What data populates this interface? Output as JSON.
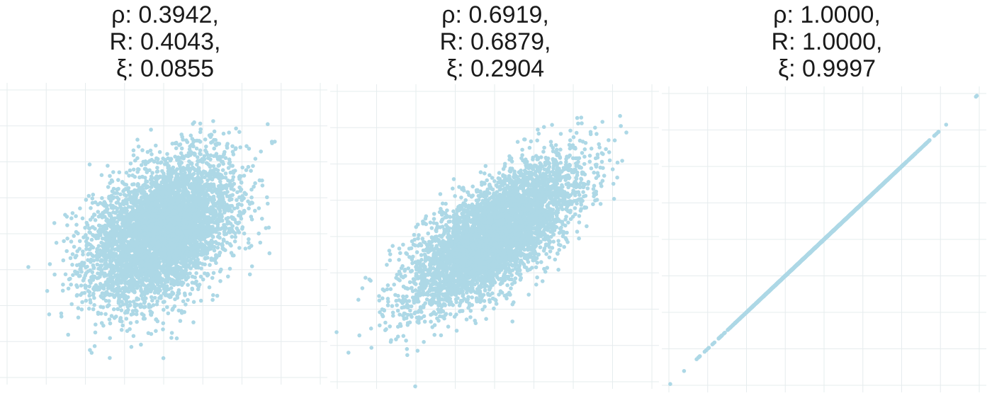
{
  "chart_data": [
    {
      "type": "scatter",
      "title_lines": [
        "ρ: 0.3942,",
        "R: 0.4043,",
        "ξ: 0.0855"
      ],
      "point_color": "#add8e6",
      "grid": true,
      "xlim": [
        -4.3,
        4.4
      ],
      "ylim": [
        -4.1,
        4.0
      ],
      "correlation": 0.3942,
      "n_points": 5000,
      "xlabel": "",
      "ylabel": ""
    },
    {
      "type": "scatter",
      "title_lines": [
        "ρ: 0.6919,",
        "R: 0.6879,",
        "ξ: 0.2904"
      ],
      "point_color": "#add8e6",
      "grid": true,
      "xlim": [
        -3.9,
        3.9
      ],
      "ylim": [
        -4.1,
        4.0
      ],
      "correlation": 0.6919,
      "n_points": 5000,
      "xlabel": "",
      "ylabel": ""
    },
    {
      "type": "scatter",
      "title_lines": [
        "ρ: 1.0000,",
        "R: 1.0000,",
        "ξ: 0.9997"
      ],
      "point_color": "#add8e6",
      "grid": true,
      "xlim": [
        -4.0,
        4.0
      ],
      "ylim": [
        -4.0,
        4.0
      ],
      "correlation": 1.0,
      "n_points": 5000,
      "xlabel": "",
      "ylabel": ""
    }
  ]
}
